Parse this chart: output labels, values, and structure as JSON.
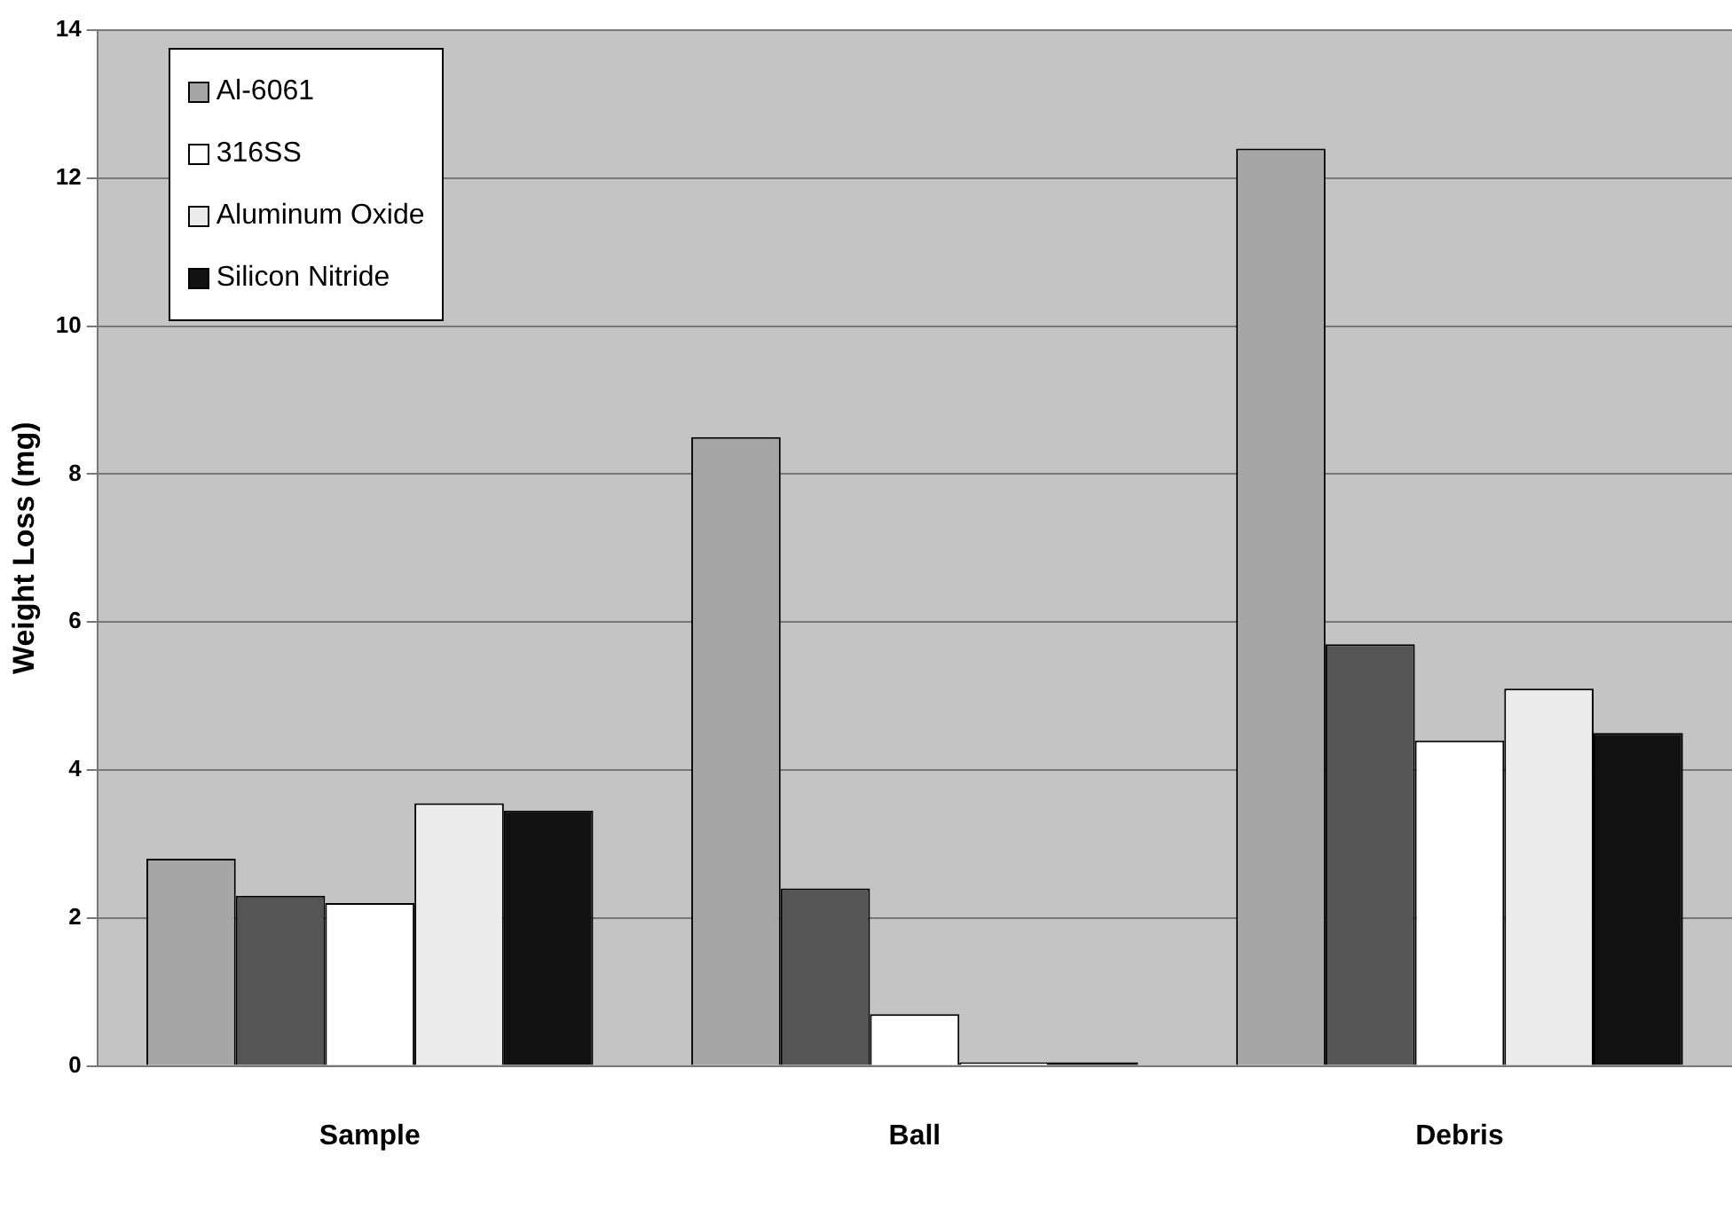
{
  "chart_data": {
    "type": "bar",
    "ylabel": "Weight Loss (mg)",
    "categories": [
      "Sample",
      "Ball",
      "Debris"
    ],
    "series": [
      {
        "name": "Al-6061",
        "color": "#a6a6a6",
        "values": [
          2.8,
          8.5,
          12.4
        ]
      },
      {
        "color": "#555555",
        "values": [
          2.3,
          2.4,
          5.7
        ]
      },
      {
        "name": "316SS",
        "color": "#ffffff",
        "values": [
          2.2,
          0.7,
          4.4
        ]
      },
      {
        "name": "Aluminum Oxide",
        "color": "#ececec",
        "values": [
          3.55,
          0.05,
          5.1
        ]
      },
      {
        "name": "Silicon Nitride",
        "color": "#111111",
        "values": [
          3.45,
          0.05,
          4.5
        ]
      }
    ],
    "ylim": [
      0,
      14
    ],
    "yticks": [
      0,
      2,
      4,
      6,
      8,
      10,
      12,
      14
    ],
    "grid": "y",
    "legend": "top left"
  }
}
